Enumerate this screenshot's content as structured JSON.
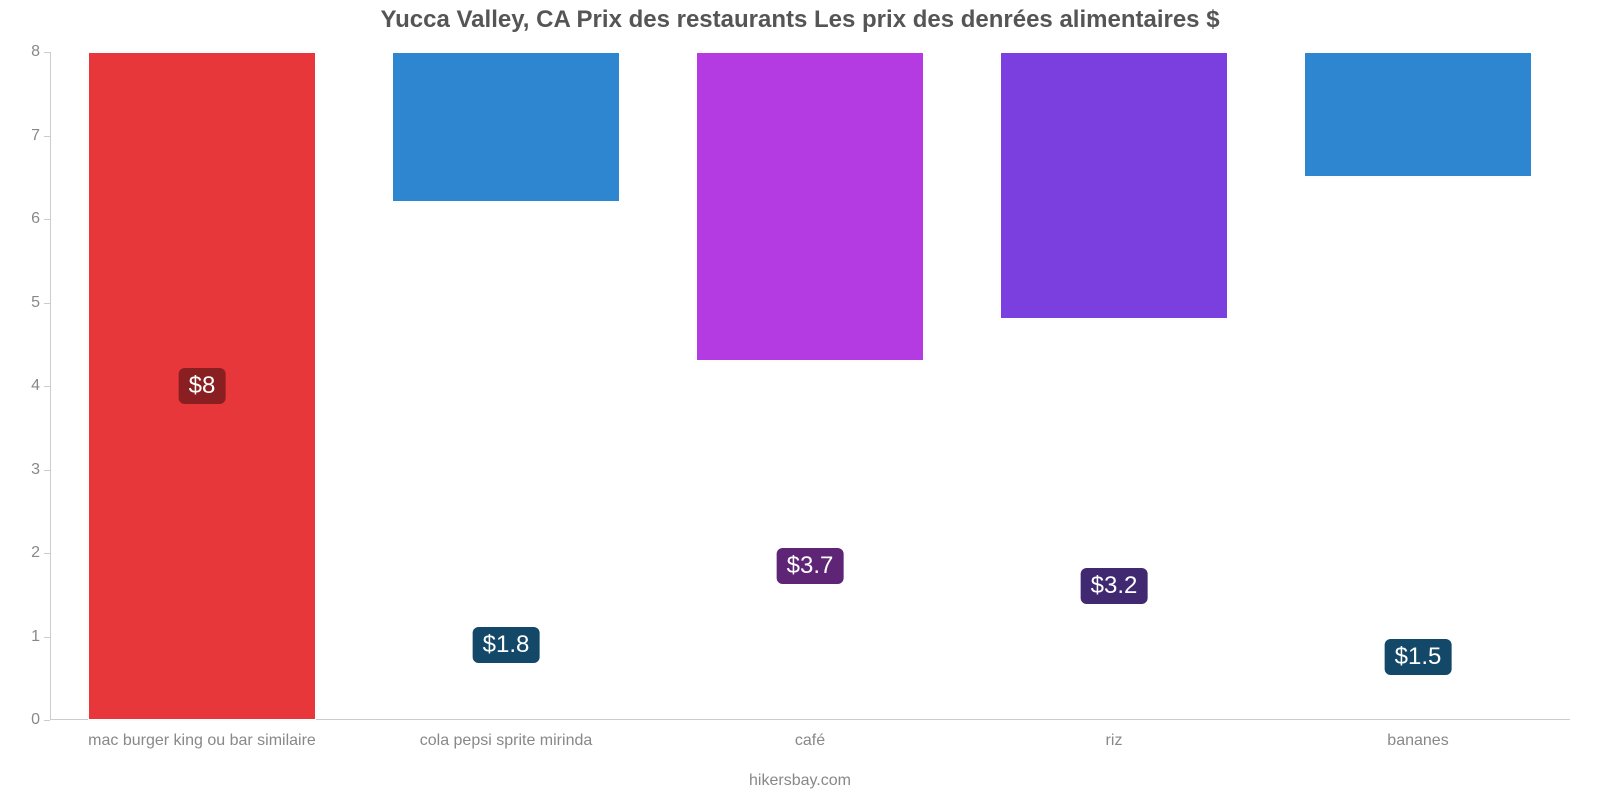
{
  "chart": {
    "type": "bar",
    "title": "Yucca Valley, CA Prix des restaurants Les prix des denrées alimentaires $",
    "title_color": "#555555",
    "title_fontsize": 24,
    "background_color": "#ffffff",
    "axis_color": "#cccccc",
    "tick_label_color": "#888888",
    "tick_label_fontsize": 16,
    "footer": "hikersbay.com",
    "footer_color": "#888888",
    "ylim_min": 0,
    "ylim_max": 8,
    "yticks": [
      0,
      1,
      2,
      3,
      4,
      5,
      6,
      7,
      8
    ],
    "bar_width_pct": 75,
    "value_label_fontsize": 24,
    "value_label_text_color": "#ffffff",
    "categories": [
      "mac burger king ou bar similaire",
      "cola pepsi sprite mirinda",
      "café",
      "riz",
      "bananes"
    ],
    "values": [
      8,
      1.8,
      3.7,
      3.2,
      1.5
    ],
    "display_values": [
      "$8",
      "$1.8",
      "$3.7",
      "$3.2",
      "$1.5"
    ],
    "bar_colors": [
      "#e8373a",
      "#2e86d0",
      "#b43ae2",
      "#7b3fe0",
      "#2e86d0"
    ],
    "badge_colors": [
      "#8a1f22",
      "#144868",
      "#5e2476",
      "#412971",
      "#144868"
    ]
  }
}
